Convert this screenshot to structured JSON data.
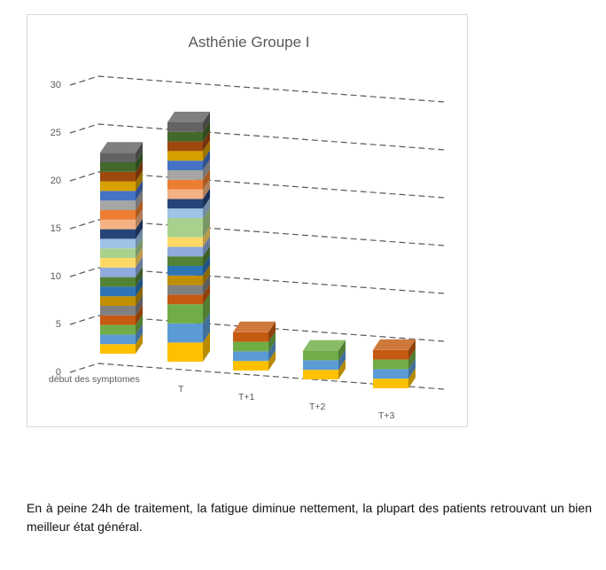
{
  "chart_data": {
    "type": "bar",
    "title": "Asthénie Groupe I",
    "xlabel": "",
    "ylabel": "",
    "ylim": [
      0,
      30
    ],
    "yticks": [
      0,
      5,
      10,
      15,
      20,
      25,
      30
    ],
    "grid": true,
    "categories": [
      "début des symptomes",
      "T",
      "T+1",
      "T+2",
      "T+3"
    ],
    "series": [
      {
        "values": [
          1,
          2,
          1,
          1,
          1
        ]
      },
      {
        "values": [
          1,
          2,
          1,
          1,
          1
        ]
      },
      {
        "values": [
          1,
          2,
          1,
          1,
          1
        ]
      },
      {
        "values": [
          1,
          1,
          1,
          0,
          1
        ]
      },
      {
        "values": [
          1,
          1,
          0,
          0,
          0
        ]
      },
      {
        "values": [
          1,
          1,
          0,
          0,
          0
        ]
      },
      {
        "values": [
          1,
          1,
          0,
          0,
          0
        ]
      },
      {
        "values": [
          1,
          1,
          0,
          0,
          0
        ]
      },
      {
        "values": [
          1,
          1,
          0,
          0,
          0
        ]
      },
      {
        "values": [
          1,
          1,
          0,
          0,
          0
        ]
      },
      {
        "values": [
          1,
          2,
          0,
          0,
          0
        ]
      },
      {
        "values": [
          1,
          1,
          0,
          0,
          0
        ]
      },
      {
        "values": [
          1,
          1,
          0,
          0,
          0
        ]
      },
      {
        "values": [
          1,
          1,
          0,
          0,
          0
        ]
      },
      {
        "values": [
          1,
          1,
          0,
          0,
          0
        ]
      },
      {
        "values": [
          1,
          1,
          0,
          0,
          0
        ]
      },
      {
        "values": [
          1,
          1,
          0,
          0,
          0
        ]
      },
      {
        "values": [
          1,
          1,
          0,
          0,
          0
        ]
      },
      {
        "values": [
          1,
          1,
          0,
          0,
          0
        ]
      },
      {
        "values": [
          1,
          1,
          0,
          0,
          0
        ]
      },
      {
        "values": [
          1,
          1,
          0,
          0,
          0
        ]
      }
    ],
    "colors": [
      "#ffc000",
      "#5b9bd5",
      "#70ad47",
      "#c55a11",
      "#808080",
      "#bf8f00",
      "#2e75b6",
      "#548235",
      "#8faadc",
      "#ffd966",
      "#a9d18e",
      "#9dc3e6",
      "#264478",
      "#f4b183",
      "#ed7d31",
      "#a5a5a5",
      "#4472c4",
      "#d6a000",
      "#9e480e",
      "#43682b",
      "#636363"
    ]
  },
  "caption": "En à peine 24h de traitement, la fatigue diminue nettement, la plupart des patients retrouvant un bien meilleur état général."
}
